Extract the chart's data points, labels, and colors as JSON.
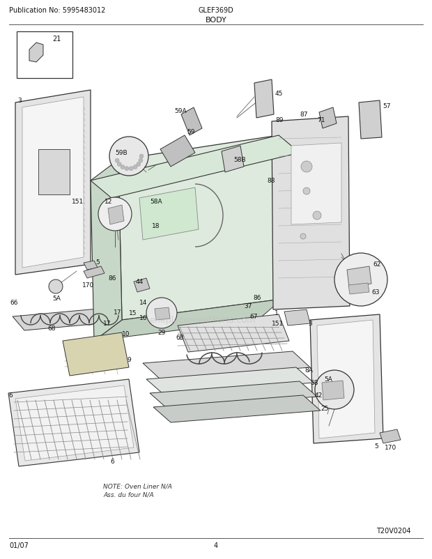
{
  "title": "BODY",
  "pub_no": "Publication No: 5995483012",
  "model": "GLEF369D",
  "date": "01/07",
  "page": "4",
  "diagram_id": "T20V0204",
  "note_line1": "NOTE: Oven Liner N/A",
  "note_line2": "Ass. du four N/A",
  "bg_color": "#ffffff",
  "lc": "#333333",
  "tc": "#111111",
  "wm_text": "eReplacementParts.com",
  "wm_color": "#bbbbbb",
  "figsize": [
    6.2,
    8.03
  ],
  "dpi": 100
}
